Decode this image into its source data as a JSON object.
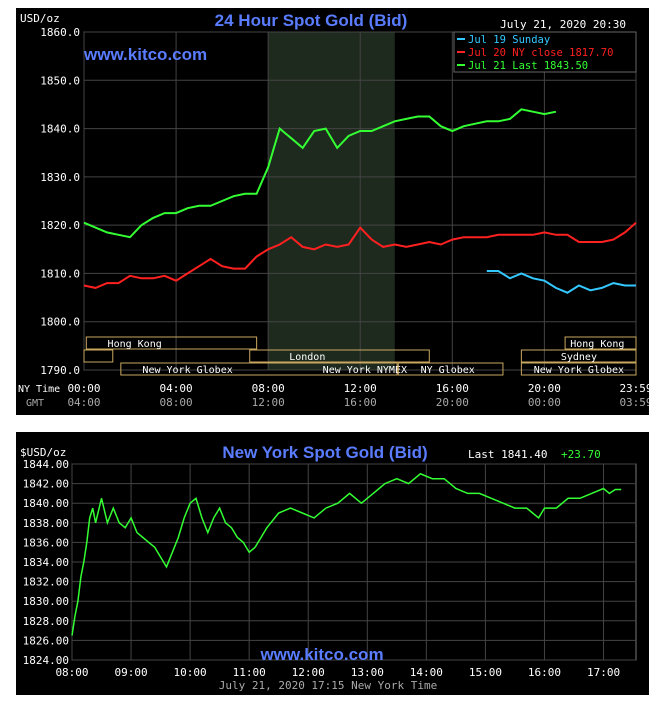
{
  "chart_data": [
    {
      "type": "line",
      "title": "24 Hour Spot Gold (Bid)",
      "watermark": "www.kitco.com",
      "unit_label": "USD/oz",
      "timestamp": "July 21, 2020 20:30",
      "ylim": [
        1790,
        1860
      ],
      "y_ticks": [
        "1860.0",
        "1850.0",
        "1840.0",
        "1830.0",
        "1820.0",
        "1810.0",
        "1800.0",
        "1790.0"
      ],
      "x_row1_label": "NY Time",
      "x_row2_label": "GMT",
      "x_ticks_ny": [
        "00:00",
        "04:00",
        "08:00",
        "12:00",
        "16:00",
        "20:00",
        "23:59"
      ],
      "x_ticks_gmt": [
        "04:00",
        "08:00",
        "12:00",
        "16:00",
        "20:00",
        "00:00",
        "03:59"
      ],
      "legend": [
        {
          "label": "Jul 19 Sunday",
          "color": "#33c8ff"
        },
        {
          "label": "Jul 20 NY close 1817.70",
          "color": "#ff2020"
        },
        {
          "label": "Jul 21 Last 1843.50",
          "color": "#33ff33"
        }
      ],
      "session_labels": [
        "Hong Kong",
        "London",
        "New York Globex",
        "New York NYMEX",
        "NY Globex",
        "Hong Kong",
        "Sydney",
        "New York Globex"
      ],
      "series": [
        {
          "name": "Jul 19 Sunday",
          "color": "#33c8ff",
          "x": [
            17.5,
            18.0,
            18.5,
            19.0,
            19.5,
            20.0,
            20.5,
            21.0,
            21.5,
            22.0,
            22.5,
            23.0,
            23.5,
            23.98
          ],
          "values": [
            1810.5,
            1810.5,
            1809.0,
            1810.0,
            1809.0,
            1808.5,
            1807.0,
            1806.0,
            1807.5,
            1806.5,
            1807.0,
            1808.0,
            1807.5,
            1807.5
          ]
        },
        {
          "name": "Jul 20 NY close 1817.70",
          "color": "#ff2020",
          "x": [
            0,
            0.5,
            1.0,
            1.5,
            2.0,
            2.5,
            3.0,
            3.5,
            4.0,
            4.5,
            5.0,
            5.5,
            6.0,
            6.5,
            7.0,
            7.5,
            8.0,
            8.5,
            9.0,
            9.5,
            10.0,
            10.5,
            11.0,
            11.5,
            12.0,
            12.5,
            13.0,
            13.5,
            14.0,
            14.5,
            15.0,
            15.5,
            16.0,
            16.5,
            17.0,
            17.5,
            18.0,
            18.5,
            19.0,
            19.5,
            20.0,
            20.5,
            21.0,
            21.5,
            22.0,
            22.5,
            23.0,
            23.5,
            23.98
          ],
          "values": [
            1807.5,
            1807.0,
            1808.0,
            1808.0,
            1809.5,
            1809.0,
            1809.0,
            1809.5,
            1808.5,
            1810.0,
            1811.5,
            1813.0,
            1811.5,
            1811.0,
            1811.0,
            1813.5,
            1815.0,
            1816.0,
            1817.5,
            1815.5,
            1815.0,
            1816.0,
            1815.5,
            1816.0,
            1819.5,
            1817.0,
            1815.5,
            1816.0,
            1815.5,
            1816.0,
            1816.5,
            1816.0,
            1817.0,
            1817.5,
            1817.5,
            1817.5,
            1818.0,
            1818.0,
            1818.0,
            1818.0,
            1818.5,
            1818.0,
            1818.0,
            1816.5,
            1816.5,
            1816.5,
            1817.0,
            1818.5,
            1820.5
          ]
        },
        {
          "name": "Jul 21 Last 1843.50",
          "color": "#33ff33",
          "x": [
            0,
            0.5,
            1.0,
            1.5,
            2.0,
            2.5,
            3.0,
            3.5,
            4.0,
            4.5,
            5.0,
            5.5,
            6.0,
            6.5,
            7.0,
            7.5,
            8.0,
            8.25,
            8.5,
            8.75,
            9.0,
            9.5,
            10.0,
            10.5,
            11.0,
            11.5,
            12.0,
            12.5,
            13.0,
            13.5,
            14.0,
            14.5,
            15.0,
            15.5,
            16.0,
            16.5,
            17.0,
            17.5,
            18.0,
            18.5,
            19.0,
            19.5,
            20.0,
            20.5
          ],
          "values": [
            1820.5,
            1819.5,
            1818.5,
            1818.0,
            1817.5,
            1820.0,
            1821.5,
            1822.5,
            1822.5,
            1823.5,
            1824.0,
            1824.0,
            1825.0,
            1826.0,
            1826.5,
            1826.5,
            1832.0,
            1836.0,
            1840.0,
            1839.0,
            1838.0,
            1836.0,
            1839.5,
            1840.0,
            1836.0,
            1838.5,
            1839.5,
            1839.5,
            1840.5,
            1841.5,
            1842.0,
            1842.5,
            1842.5,
            1840.5,
            1839.5,
            1840.5,
            1841.0,
            1841.5,
            1841.5,
            1842.0,
            1844.0,
            1843.5,
            1843.0,
            1843.5
          ]
        }
      ]
    },
    {
      "type": "line",
      "title": "New York Spot Gold (Bid)",
      "watermark": "www.kitco.com",
      "unit_label": "$USD/oz",
      "last_label": "Last 1841.40",
      "change_label": "+23.70",
      "footer": "July 21, 2020 17:15 New York Time",
      "ylim": [
        1824,
        1844
      ],
      "y_ticks": [
        "1844.00",
        "1842.00",
        "1840.00",
        "1838.00",
        "1836.00",
        "1834.00",
        "1832.00",
        "1830.00",
        "1828.00",
        "1826.00",
        "1824.00"
      ],
      "x_ticks": [
        "08:00",
        "09:00",
        "10:00",
        "11:00",
        "12:00",
        "13:00",
        "14:00",
        "15:00",
        "16:00",
        "17:00"
      ],
      "series": [
        {
          "name": "",
          "color": "#33ff33",
          "x": [
            8.0,
            8.05,
            8.1,
            8.15,
            8.2,
            8.25,
            8.3,
            8.35,
            8.4,
            8.5,
            8.6,
            8.7,
            8.8,
            8.9,
            9.0,
            9.1,
            9.2,
            9.3,
            9.4,
            9.5,
            9.6,
            9.7,
            9.8,
            9.9,
            10.0,
            10.1,
            10.2,
            10.3,
            10.4,
            10.5,
            10.6,
            10.7,
            10.8,
            10.9,
            11.0,
            11.1,
            11.2,
            11.3,
            11.5,
            11.7,
            11.9,
            12.1,
            12.3,
            12.5,
            12.7,
            12.9,
            13.1,
            13.3,
            13.5,
            13.7,
            13.9,
            14.1,
            14.3,
            14.5,
            14.7,
            14.9,
            15.1,
            15.3,
            15.5,
            15.7,
            15.8,
            15.9,
            16.0,
            16.2,
            16.4,
            16.6,
            16.8,
            17.0,
            17.1,
            17.2,
            17.3
          ],
          "values": [
            1826.5,
            1828.5,
            1830.0,
            1832.5,
            1834.0,
            1836.0,
            1838.5,
            1839.5,
            1838.0,
            1840.5,
            1838.0,
            1839.5,
            1838.0,
            1837.5,
            1838.5,
            1837.0,
            1836.5,
            1836.0,
            1835.5,
            1834.5,
            1833.5,
            1835.0,
            1836.5,
            1838.5,
            1840.0,
            1840.5,
            1838.5,
            1837.0,
            1838.5,
            1839.5,
            1838.0,
            1837.5,
            1836.5,
            1836.0,
            1835.0,
            1835.5,
            1836.5,
            1837.5,
            1839.0,
            1839.5,
            1839.0,
            1838.5,
            1839.5,
            1840.0,
            1841.0,
            1840.0,
            1841.0,
            1842.0,
            1842.5,
            1842.0,
            1843.0,
            1842.5,
            1842.5,
            1841.5,
            1841.0,
            1841.0,
            1840.5,
            1840.0,
            1839.5,
            1839.5,
            1839.0,
            1838.5,
            1839.5,
            1839.5,
            1840.5,
            1840.5,
            1841.0,
            1841.5,
            1841.0,
            1841.4,
            1841.4
          ]
        }
      ]
    }
  ]
}
